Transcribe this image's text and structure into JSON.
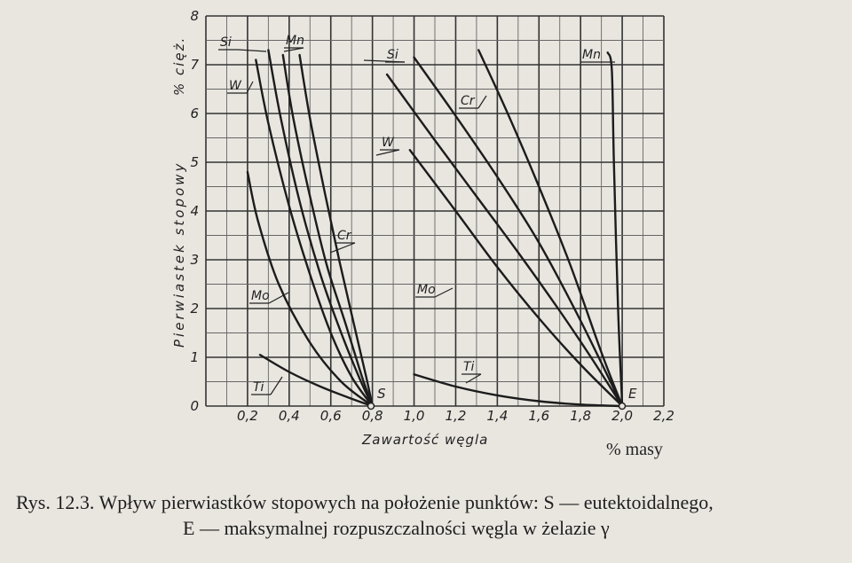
{
  "chart_data": {
    "type": "line",
    "xlabel": "Zawartość węgla",
    "ylabel": "Pierwiastek stopowy",
    "y_unit": "% cięż.",
    "x_unit": "% masy",
    "xlim": [
      0,
      2.2
    ],
    "ylim": [
      0,
      8
    ],
    "grid": true,
    "x_ticks": [
      "0,2",
      "0,4",
      "0,6",
      "0,8",
      "1,0",
      "1,2",
      "1,4",
      "1,6",
      "1,8",
      "2,0",
      "2,2"
    ],
    "y_ticks": [
      "0",
      "1",
      "2",
      "3",
      "4",
      "5",
      "6",
      "7",
      "8"
    ],
    "points": [
      {
        "name": "S",
        "x": 0.8,
        "y": 0
      },
      {
        "name": "E",
        "x": 2.0,
        "y": 0
      }
    ],
    "series": [
      {
        "name": "Ti",
        "group": "S",
        "x": [
          0.26,
          0.4,
          0.55,
          0.7,
          0.8
        ],
        "y": [
          1.05,
          0.7,
          0.4,
          0.15,
          0
        ]
      },
      {
        "name": "Mo",
        "group": "S",
        "x": [
          0.2,
          0.25,
          0.35,
          0.5,
          0.65,
          0.8
        ],
        "y": [
          4.8,
          3.8,
          2.5,
          1.3,
          0.5,
          0
        ]
      },
      {
        "name": "W",
        "group": "S",
        "x": [
          0.24,
          0.3,
          0.4,
          0.5,
          0.6,
          0.7,
          0.8
        ],
        "y": [
          7.1,
          5.8,
          4.1,
          2.7,
          1.5,
          0.6,
          0
        ]
      },
      {
        "name": "Si",
        "group": "S",
        "x": [
          0.3,
          0.36,
          0.45,
          0.55,
          0.65,
          0.74,
          0.8
        ],
        "y": [
          7.3,
          5.9,
          4.2,
          2.7,
          1.5,
          0.55,
          0
        ]
      },
      {
        "name": "Mn",
        "group": "S",
        "x": [
          0.37,
          0.42,
          0.5,
          0.58,
          0.67,
          0.75,
          0.8
        ],
        "y": [
          7.2,
          5.9,
          4.3,
          2.9,
          1.7,
          0.6,
          0
        ]
      },
      {
        "name": "Cr",
        "group": "S",
        "x": [
          0.45,
          0.5,
          0.57,
          0.64,
          0.71,
          0.77,
          0.8
        ],
        "y": [
          7.2,
          5.9,
          4.4,
          3.0,
          1.7,
          0.6,
          0
        ]
      },
      {
        "name": "Ti",
        "group": "E",
        "x": [
          1.0,
          1.2,
          1.4,
          1.6,
          1.8,
          2.0
        ],
        "y": [
          0.65,
          0.4,
          0.22,
          0.1,
          0.03,
          0
        ]
      },
      {
        "name": "Mo",
        "group": "E",
        "x": [
          0.98,
          1.2,
          1.4,
          1.6,
          1.8,
          2.0
        ],
        "y": [
          5.25,
          4.0,
          2.85,
          1.8,
          0.85,
          0
        ]
      },
      {
        "name": "W",
        "group": "E",
        "x": [
          0.87,
          1.1,
          1.3,
          1.5,
          1.7,
          1.85,
          2.0
        ],
        "y": [
          6.8,
          5.45,
          4.3,
          3.15,
          1.95,
          1.0,
          0
        ]
      },
      {
        "name": "Si",
        "group": "E",
        "x": [
          1.0,
          1.2,
          1.4,
          1.6,
          1.8,
          2.0
        ],
        "y": [
          7.15,
          5.95,
          4.7,
          3.35,
          1.75,
          0
        ]
      },
      {
        "name": "Cr",
        "group": "E",
        "x": [
          1.31,
          1.45,
          1.6,
          1.75,
          1.9,
          2.0
        ],
        "y": [
          7.3,
          6.0,
          4.5,
          2.9,
          1.1,
          0
        ]
      },
      {
        "name": "Mn",
        "group": "E",
        "x": [
          1.93,
          1.95,
          1.96,
          1.98,
          2.0
        ],
        "y": [
          7.25,
          6.9,
          5.0,
          2.0,
          0
        ]
      }
    ]
  },
  "figure": {
    "label_S": "S",
    "label_E": "E",
    "unit_label": "% masy",
    "caption_line1": "Rys. 12.3. Wpływ pierwiastków stopowych na położenie punktów: S — eutektoidalnego,",
    "caption_line2": "E — maksymalnej rozpuszczalności węgla w żelazie γ"
  }
}
